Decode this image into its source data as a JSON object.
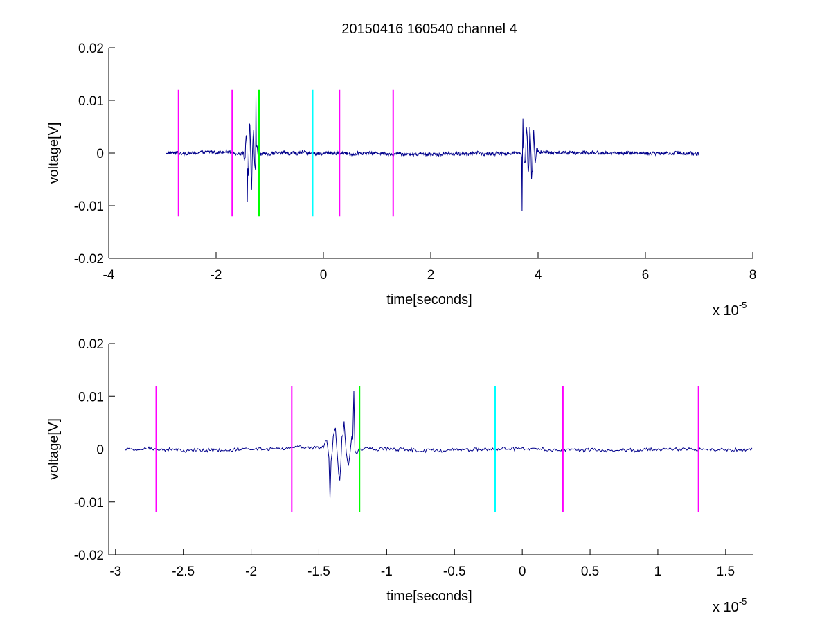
{
  "figure": {
    "title": "20150416 160540 channel 4"
  },
  "chart_data": [
    {
      "type": "line",
      "title": "20150416 160540 channel 4",
      "xlabel": "time[seconds]",
      "ylabel": "voltage[V]",
      "x_multiplier": "x 10",
      "x_multiplier_exponent": "-5",
      "xlim": [
        -4,
        8
      ],
      "ylim": [
        -0.02,
        0.02
      ],
      "x_ticks": [
        -4,
        -2,
        0,
        2,
        4,
        6,
        8
      ],
      "x_tick_labels": [
        "-4",
        "-2",
        "0",
        "2",
        "4",
        "6",
        "8"
      ],
      "y_ticks": [
        -0.02,
        -0.01,
        0,
        0.01,
        0.02
      ],
      "y_tick_labels": [
        "-0.02",
        "-0.01",
        "0",
        "0.01",
        "0.02"
      ],
      "grid": false,
      "series": [
        {
          "color": "#00008b",
          "x_range": [
            -2.93,
            7.0
          ],
          "baseline_noise": 0.0004,
          "bursts": [
            {
              "x": [
                -1.5,
                -1.2
              ],
              "extreme_x": [
                -1.42,
                -1.26
              ],
              "extreme_y": [
                -0.0093,
                0.011
              ]
            },
            {
              "x": [
                3.68,
                4.0
              ],
              "extreme_x": [
                3.7,
                3.72
              ],
              "extreme_y": [
                -0.011,
                0.0065
              ]
            }
          ]
        }
      ],
      "markers": [
        {
          "x": -2.7,
          "color": "#ff00ff"
        },
        {
          "x": -1.7,
          "color": "#ff00ff"
        },
        {
          "x": -1.2,
          "color": "#00ff00"
        },
        {
          "x": -0.2,
          "color": "#00ffff"
        },
        {
          "x": 0.3,
          "color": "#ff00ff"
        },
        {
          "x": 1.3,
          "color": "#ff00ff"
        }
      ],
      "marker_y_range": [
        -0.012,
        0.012
      ]
    },
    {
      "type": "line",
      "title": "",
      "xlabel": "time[seconds]",
      "ylabel": "voltage[V]",
      "x_multiplier": "x 10",
      "x_multiplier_exponent": "-5",
      "xlim": [
        -3.05,
        1.7
      ],
      "ylim": [
        -0.02,
        0.02
      ],
      "x_ticks": [
        -3,
        -2.5,
        -2,
        -1.5,
        -1,
        -0.5,
        0,
        0.5,
        1,
        1.5
      ],
      "x_tick_labels": [
        "-3",
        "-2.5",
        "-2",
        "-1.5",
        "-1",
        "-0.5",
        "0",
        "0.5",
        "1",
        "1.5"
      ],
      "y_ticks": [
        -0.02,
        -0.01,
        0,
        0.01,
        0.02
      ],
      "y_tick_labels": [
        "-0.02",
        "-0.01",
        "0",
        "0.01",
        "0.02"
      ],
      "grid": false,
      "series": [
        {
          "color": "#00008b",
          "x_range": [
            -2.93,
            1.7
          ],
          "baseline_noise": 0.0004,
          "bursts": [
            {
              "x": [
                -1.47,
                -1.2
              ],
              "extreme_x": [
                -1.42,
                -1.24
              ],
              "extreme_y": [
                -0.0093,
                0.011
              ]
            }
          ]
        }
      ],
      "markers": [
        {
          "x": -2.7,
          "color": "#ff00ff"
        },
        {
          "x": -1.7,
          "color": "#ff00ff"
        },
        {
          "x": -1.2,
          "color": "#00ff00"
        },
        {
          "x": -0.2,
          "color": "#00ffff"
        },
        {
          "x": 0.3,
          "color": "#ff00ff"
        },
        {
          "x": 1.3,
          "color": "#ff00ff"
        }
      ],
      "marker_y_range": [
        -0.012,
        0.012
      ]
    }
  ]
}
